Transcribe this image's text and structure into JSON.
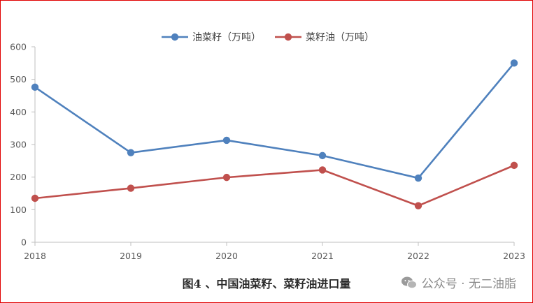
{
  "chart_data": {
    "type": "line",
    "categories": [
      "2018",
      "2019",
      "2020",
      "2021",
      "2022",
      "2023"
    ],
    "series": [
      {
        "name": "油菜籽（万吨）",
        "color": "#4f81bd",
        "values": [
          476,
          275,
          313,
          266,
          197,
          550
        ]
      },
      {
        "name": "菜籽油（万吨）",
        "color": "#c0504d",
        "values": [
          135,
          166,
          199,
          222,
          112,
          236
        ]
      }
    ],
    "ylim": [
      0,
      600
    ],
    "yticks": [
      0,
      100,
      200,
      300,
      400,
      500,
      600
    ],
    "grid": false,
    "legend_position": "top-center",
    "title": "",
    "xlabel": "",
    "ylabel": ""
  },
  "caption": "图4 、中国油菜籽、菜籽油进口量",
  "watermark": {
    "text": "公众号 · 无二油脂",
    "icon": "wechat-icon"
  },
  "frame_color": "#e00000"
}
